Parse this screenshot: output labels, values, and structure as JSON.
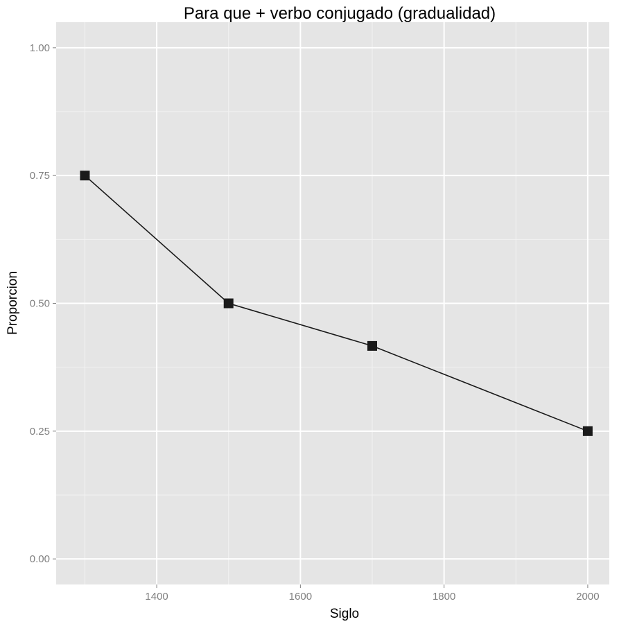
{
  "chart_data": {
    "type": "line",
    "title": "Para que + verbo conjugado (gradualidad)",
    "xlabel": "Siglo",
    "ylabel": "Proporcion",
    "x": [
      1300,
      1500,
      1700,
      2000
    ],
    "y": [
      0.75,
      0.5,
      0.4167,
      0.25
    ],
    "xlim": [
      1260,
      2030
    ],
    "ylim": [
      -0.05,
      1.05
    ],
    "x_ticks": [
      1400,
      1600,
      1800,
      2000
    ],
    "x_tick_labels": [
      "1400",
      "1600",
      "1800",
      "2000"
    ],
    "y_ticks": [
      0,
      0.25,
      0.5,
      0.75,
      1
    ],
    "y_tick_labels": [
      "0.00",
      "0.25",
      "0.50",
      "0.75",
      "1.00"
    ],
    "grid": true,
    "marker": "square",
    "colors": {
      "panel_background": "#e5e5e5",
      "grid_major": "#ffffff",
      "grid_minor": "#f2f2f2",
      "line": "#1a1a1a",
      "marker": "#1a1a1a",
      "tick_label": "#7f7f7f"
    }
  }
}
